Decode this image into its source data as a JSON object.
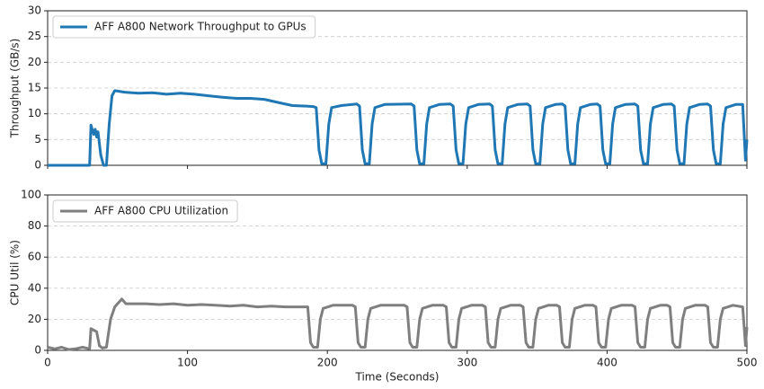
{
  "chart_data": [
    {
      "type": "line",
      "ylabel": "Throughput (GB/s)",
      "legend": "upper left",
      "grid": true,
      "xlim": [
        0,
        500
      ],
      "xticks": [
        0,
        100,
        200,
        300,
        400,
        500
      ],
      "ylim": [
        0,
        30
      ],
      "yticks": [
        0,
        5,
        10,
        15,
        20,
        25,
        30
      ],
      "x": [
        0,
        30,
        31,
        33,
        34,
        35,
        36,
        38,
        40,
        42,
        44,
        46,
        48,
        55,
        65,
        75,
        85,
        95,
        105,
        115,
        125,
        135,
        145,
        155,
        165,
        175,
        185,
        190,
        192,
        194,
        196,
        199,
        201,
        203,
        210,
        221,
        223,
        225,
        227,
        230,
        232,
        234,
        241,
        260,
        262,
        264,
        266,
        269,
        271,
        273,
        280,
        288,
        290,
        292,
        294,
        297,
        299,
        301,
        308,
        316,
        318,
        320,
        322,
        325,
        327,
        329,
        336,
        343,
        345,
        347,
        349,
        352,
        354,
        356,
        363,
        368,
        370,
        372,
        374,
        377,
        379,
        381,
        388,
        393,
        395,
        397,
        399,
        402,
        404,
        406,
        413,
        420,
        422,
        424,
        426,
        429,
        431,
        433,
        440,
        446,
        448,
        450,
        452,
        455,
        457,
        459,
        466,
        472,
        474,
        476,
        478,
        481,
        483,
        485,
        492,
        497,
        499,
        500
      ],
      "series": [
        {
          "name": "AFF A800 Network Throughput to GPUs",
          "color": "#1f77b4",
          "values": [
            0,
            0,
            7.8,
            6,
            7,
            5.5,
            6.5,
            2,
            0,
            0,
            8,
            13.5,
            14.5,
            14.2,
            14,
            14.1,
            13.8,
            14,
            13.8,
            13.5,
            13.2,
            13,
            13,
            12.8,
            12.2,
            11.6,
            11.5,
            11.4,
            11.2,
            3,
            0.3,
            0.3,
            8,
            11.2,
            11.6,
            11.9,
            11.5,
            3,
            0.3,
            0.3,
            8,
            11.2,
            11.8,
            11.9,
            11.5,
            3,
            0.3,
            0.3,
            8,
            11.2,
            11.8,
            11.9,
            11.5,
            3,
            0.3,
            0.3,
            8,
            11.2,
            11.8,
            11.9,
            11.5,
            3,
            0.3,
            0.3,
            8,
            11.2,
            11.8,
            11.9,
            11.5,
            3,
            0.3,
            0.3,
            8,
            11.2,
            11.8,
            11.9,
            11.5,
            3,
            0.3,
            0.3,
            8,
            11.2,
            11.8,
            11.9,
            11.5,
            3,
            0.3,
            0.3,
            8,
            11.2,
            11.8,
            11.9,
            11.5,
            3,
            0.3,
            0.3,
            8,
            11.2,
            11.8,
            11.9,
            11.5,
            3,
            0.3,
            0.3,
            8,
            11.2,
            11.8,
            11.9,
            11.5,
            3,
            0.3,
            0.3,
            8,
            11.2,
            11.8,
            11.8,
            1,
            5
          ]
        }
      ]
    },
    {
      "type": "line",
      "xlabel": "Time (Seconds)",
      "ylabel": "CPU Util (%)",
      "legend": "upper left",
      "grid": true,
      "xlim": [
        0,
        500
      ],
      "xticks": [
        0,
        100,
        200,
        300,
        400,
        500
      ],
      "ylim": [
        0,
        100
      ],
      "yticks": [
        0,
        20,
        40,
        60,
        80,
        100
      ],
      "x": [
        0,
        5,
        10,
        15,
        20,
        25,
        30,
        31,
        33,
        35,
        37,
        39,
        42,
        45,
        48,
        50,
        53,
        56,
        60,
        70,
        80,
        90,
        100,
        110,
        120,
        130,
        140,
        150,
        160,
        170,
        180,
        186,
        188,
        190,
        193,
        195,
        197,
        204,
        218,
        220,
        222,
        224,
        227,
        229,
        231,
        238,
        255,
        257,
        259,
        261,
        264,
        266,
        268,
        275,
        283,
        285,
        287,
        289,
        292,
        294,
        296,
        303,
        311,
        313,
        315,
        317,
        320,
        322,
        324,
        331,
        338,
        340,
        342,
        344,
        347,
        349,
        351,
        358,
        364,
        366,
        368,
        370,
        373,
        375,
        377,
        384,
        390,
        392,
        394,
        396,
        399,
        401,
        403,
        410,
        418,
        420,
        422,
        424,
        427,
        429,
        431,
        438,
        443,
        445,
        447,
        449,
        452,
        454,
        456,
        463,
        470,
        472,
        474,
        476,
        479,
        481,
        483,
        490,
        497,
        499,
        500
      ],
      "series": [
        {
          "name": "AFF A800 CPU Utilization",
          "color": "#7f7f7f",
          "values": [
            2,
            1,
            2,
            0.5,
            1,
            2,
            1,
            14,
            13,
            12,
            3,
            1.5,
            2,
            20,
            28,
            30,
            33,
            30,
            30,
            30,
            29.5,
            30,
            29,
            29.5,
            29,
            28.5,
            29,
            28,
            28.5,
            28,
            28,
            28,
            5,
            2,
            2,
            20,
            27,
            29,
            29,
            28,
            5,
            2,
            2,
            20,
            27,
            29,
            29,
            28,
            5,
            2,
            2,
            20,
            27,
            29,
            29,
            28,
            5,
            2,
            2,
            20,
            27,
            29,
            29,
            28,
            5,
            2,
            2,
            20,
            27,
            29,
            29,
            28,
            5,
            2,
            2,
            20,
            27,
            29,
            29,
            28,
            5,
            2,
            2,
            20,
            27,
            29,
            29,
            28,
            5,
            2,
            2,
            20,
            27,
            29,
            29,
            28,
            5,
            2,
            2,
            20,
            27,
            29,
            29,
            28,
            5,
            2,
            2,
            20,
            27,
            29,
            29,
            28,
            5,
            2,
            2,
            20,
            27,
            29,
            28,
            3,
            15
          ]
        }
      ]
    }
  ]
}
